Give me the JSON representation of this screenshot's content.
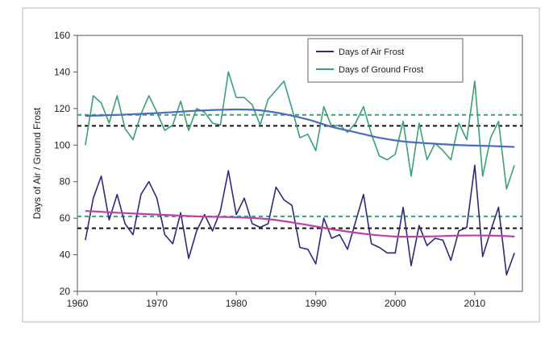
{
  "chart_data": {
    "type": "line",
    "title": "",
    "xlabel": "",
    "ylabel": "Days of Air / Ground Frost",
    "xlim": [
      1960,
      2016
    ],
    "ylim": [
      20,
      160
    ],
    "x_ticks": [
      1960,
      1970,
      1980,
      1990,
      2000,
      2010
    ],
    "y_ticks": [
      20,
      40,
      60,
      80,
      100,
      120,
      140,
      160
    ],
    "grid": false,
    "legend_position": "top-right",
    "series": [
      {
        "name": "Days of Air Frost",
        "color": "#2e2a7a",
        "x": [
          1961,
          1962,
          1963,
          1964,
          1965,
          1966,
          1967,
          1968,
          1969,
          1970,
          1971,
          1972,
          1973,
          1974,
          1975,
          1976,
          1977,
          1978,
          1979,
          1980,
          1981,
          1982,
          1983,
          1984,
          1985,
          1986,
          1987,
          1988,
          1989,
          1990,
          1991,
          1992,
          1993,
          1994,
          1995,
          1996,
          1997,
          1998,
          1999,
          2000,
          2001,
          2002,
          2003,
          2004,
          2005,
          2006,
          2007,
          2008,
          2009,
          2010,
          2011,
          2012,
          2013,
          2014,
          2015
        ],
        "values": [
          48,
          71,
          83,
          59,
          73,
          57,
          51,
          73,
          80,
          71,
          51,
          46,
          63,
          38,
          53,
          62,
          53,
          64,
          86,
          62,
          71,
          57,
          55,
          57,
          77,
          70,
          67,
          44,
          43,
          35,
          60,
          49,
          51,
          43,
          58,
          73,
          46,
          44,
          41,
          41,
          66,
          34,
          56,
          45,
          49,
          48,
          37,
          53,
          55,
          89,
          39,
          53,
          66,
          29,
          41
        ]
      },
      {
        "name": "Days of Ground Frost",
        "color": "#3aa272",
        "x": [
          1961,
          1962,
          1963,
          1964,
          1965,
          1966,
          1967,
          1968,
          1969,
          1970,
          1971,
          1972,
          1973,
          1974,
          1975,
          1976,
          1977,
          1978,
          1979,
          1980,
          1981,
          1982,
          1983,
          1984,
          1985,
          1986,
          1987,
          1988,
          1989,
          1990,
          1991,
          1992,
          1993,
          1994,
          1995,
          1996,
          1997,
          1998,
          1999,
          2000,
          2001,
          2002,
          2003,
          2004,
          2005,
          2006,
          2007,
          2008,
          2009,
          2010,
          2011,
          2012,
          2013,
          2014,
          2015
        ],
        "values": [
          100,
          127,
          123,
          112,
          127,
          109,
          103,
          117,
          127,
          118,
          108,
          111,
          124,
          108,
          120,
          118,
          112,
          111,
          140,
          126,
          126,
          122,
          111,
          125,
          130,
          135,
          120,
          104,
          106,
          97,
          121,
          110,
          111,
          107,
          112,
          121,
          106,
          94,
          92,
          95,
          113,
          83,
          112,
          92,
          101,
          97,
          92,
          112,
          103,
          135,
          83,
          104,
          113,
          76,
          89
        ]
      },
      {
        "name": "",
        "color": "#4a6cc0",
        "role": "trend of Days of Ground Frost",
        "x": [
          1961,
          1965,
          1970,
          1975,
          1980,
          1983,
          1986,
          1989,
          1992,
          1995,
          1998,
          2001,
          2004,
          2008,
          2012,
          2015
        ],
        "values": [
          116,
          116.5,
          117.5,
          118.8,
          119.5,
          119,
          117,
          114,
          110,
          107,
          104,
          102,
          101,
          100,
          99.5,
          99
        ]
      },
      {
        "name": "",
        "color": "#c040a8",
        "role": "trend of Days of Air Frost",
        "x": [
          1961,
          1965,
          1970,
          1975,
          1980,
          1984,
          1988,
          1992,
          1996,
          2000,
          2004,
          2008,
          2012,
          2015
        ],
        "values": [
          64,
          63,
          62,
          61,
          60.5,
          59.5,
          57,
          54,
          51.5,
          50,
          50,
          50.5,
          50.5,
          50
        ]
      }
    ],
    "reference_lines": [
      {
        "value": 116.5,
        "color": "#3aa272",
        "style": "dashed"
      },
      {
        "value": 110.5,
        "color": "#111111",
        "style": "dashed"
      },
      {
        "value": 61,
        "color": "#3aa272",
        "style": "dashed"
      },
      {
        "value": 54.5,
        "color": "#111111",
        "style": "dashed"
      }
    ]
  }
}
